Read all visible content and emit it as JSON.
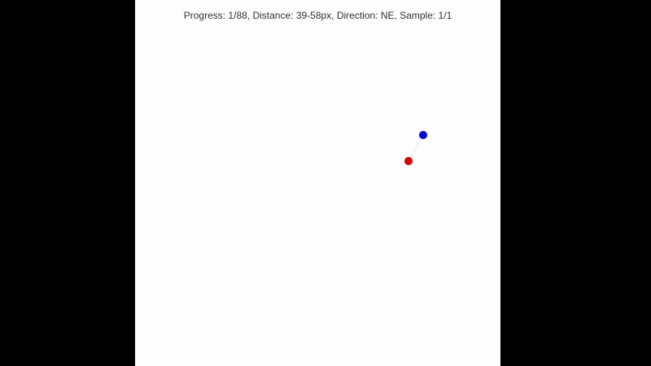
{
  "status": {
    "text": "Progress: 1/88, Distance: 39-58px, Direction: NE, Sample: 1/1"
  },
  "colors": {
    "start_dot": "#e00000",
    "target_dot": "#0000e0",
    "background": "#fdfcfe",
    "letterbox": "#000000"
  },
  "icons": {
    "start": "red-dot",
    "target": "blue-dot"
  }
}
